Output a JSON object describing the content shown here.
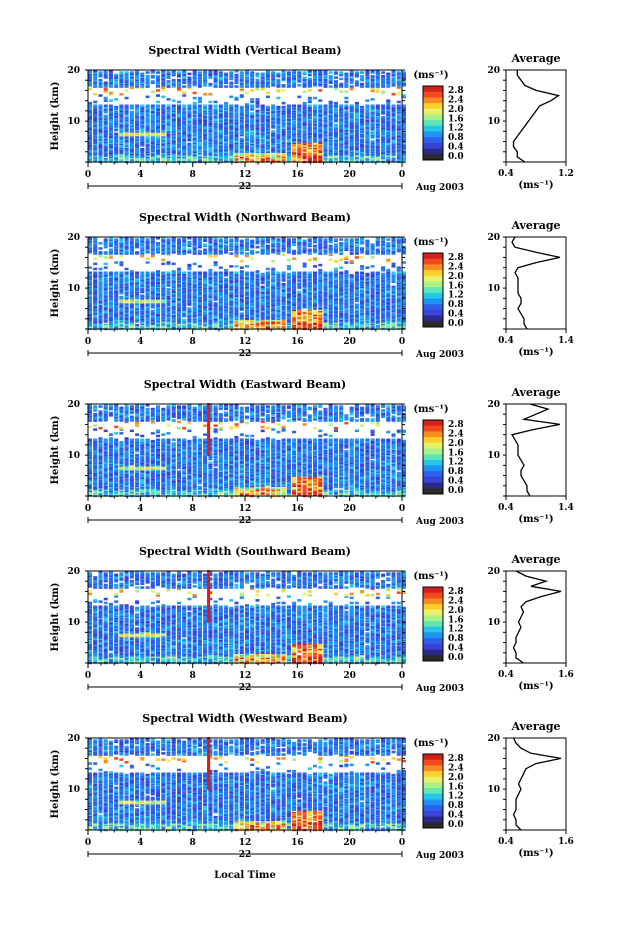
{
  "figure": {
    "xlabel_bottom": "Local Time",
    "date_label": "Aug 2003",
    "day_label": "22",
    "avg_title": "Average",
    "unit_label": "(ms⁻¹)",
    "y_label": "Height (km)"
  },
  "colorbar": {
    "unit": "(ms⁻¹)",
    "ticks": [
      "2.8",
      "2.4",
      "2.0",
      "1.6",
      "1.2",
      "0.8",
      "0.4",
      "0.0"
    ],
    "colors": [
      "#d4201c",
      "#f4491e",
      "#fa8a22",
      "#fdd02a",
      "#e7f26a",
      "#a8f088",
      "#5fe6b6",
      "#27c6e6",
      "#1f93f2",
      "#2e60ec",
      "#3a44d4",
      "#2a2a8a",
      "#2a2a2a"
    ]
  },
  "chart_data": [
    {
      "type": "heatmap",
      "title": "Spectral Width (Vertical Beam)",
      "xlabel": "Local Time",
      "ylabel": "Height (km)",
      "x_ticks": [
        "0",
        "4",
        "8",
        "12",
        "16",
        "20",
        "0"
      ],
      "xlim": [
        0,
        24
      ],
      "y_ticks": [
        "20",
        "10"
      ],
      "ylim": [
        2,
        20
      ],
      "value_range": [
        0,
        2.8
      ],
      "units": "ms-1",
      "avg_profile": {
        "xlabel": "(ms-1)",
        "x_ticks": [
          "0.4",
          "1.2"
        ],
        "xlim": [
          0.4,
          1.2
        ],
        "height_km": [
          2,
          3,
          4,
          5,
          6,
          7,
          8,
          9,
          10,
          11,
          12,
          13,
          14,
          15,
          16,
          17,
          18,
          19,
          20
        ],
        "width_ms": [
          0.65,
          0.55,
          0.55,
          0.5,
          0.5,
          0.55,
          0.6,
          0.65,
          0.7,
          0.75,
          0.8,
          0.85,
          1.0,
          1.1,
          0.8,
          0.65,
          0.6,
          0.55,
          0.55
        ]
      }
    },
    {
      "type": "heatmap",
      "title": "Spectral Width (Northward Beam)",
      "xlabel": "Local Time",
      "ylabel": "Height (km)",
      "x_ticks": [
        "0",
        "4",
        "8",
        "12",
        "16",
        "20",
        "0"
      ],
      "xlim": [
        0,
        24
      ],
      "y_ticks": [
        "20",
        "10"
      ],
      "ylim": [
        2,
        20
      ],
      "value_range": [
        0,
        2.8
      ],
      "units": "ms-1",
      "avg_profile": {
        "xlabel": "(ms-1)",
        "x_ticks": [
          "0.4",
          "1.4"
        ],
        "xlim": [
          0.4,
          1.4
        ],
        "height_km": [
          2,
          3,
          4,
          5,
          6,
          7,
          8,
          9,
          10,
          11,
          12,
          13,
          14,
          15,
          16,
          17,
          18,
          19,
          20
        ],
        "width_ms": [
          0.75,
          0.7,
          0.7,
          0.65,
          0.6,
          0.65,
          0.65,
          0.6,
          0.6,
          0.6,
          0.6,
          0.55,
          0.6,
          0.9,
          1.3,
          0.9,
          0.55,
          0.5,
          0.55
        ]
      }
    },
    {
      "type": "heatmap",
      "title": "Spectral Width (Eastward Beam)",
      "xlabel": "Local Time",
      "ylabel": "Height (km)",
      "x_ticks": [
        "0",
        "4",
        "8",
        "12",
        "16",
        "20",
        "0"
      ],
      "xlim": [
        0,
        24
      ],
      "y_ticks": [
        "20",
        "10"
      ],
      "ylim": [
        2,
        20
      ],
      "value_range": [
        0,
        2.8
      ],
      "units": "ms-1",
      "avg_profile": {
        "xlabel": "(ms-1)",
        "x_ticks": [
          "0.4",
          "1.4"
        ],
        "xlim": [
          0.4,
          1.4
        ],
        "height_km": [
          2,
          3,
          4,
          5,
          6,
          7,
          8,
          9,
          10,
          11,
          12,
          13,
          14,
          15,
          16,
          17,
          18,
          19,
          20
        ],
        "width_ms": [
          0.8,
          0.75,
          0.75,
          0.7,
          0.65,
          0.65,
          0.7,
          0.65,
          0.6,
          0.6,
          0.6,
          0.55,
          0.5,
          0.85,
          1.3,
          0.7,
          0.9,
          1.1,
          0.8
        ]
      }
    },
    {
      "type": "heatmap",
      "title": "Spectral Width (Southward Beam)",
      "xlabel": "Local Time",
      "ylabel": "Height (km)",
      "x_ticks": [
        "0",
        "4",
        "8",
        "12",
        "16",
        "20",
        "0"
      ],
      "xlim": [
        0,
        24
      ],
      "y_ticks": [
        "20",
        "10"
      ],
      "ylim": [
        2,
        20
      ],
      "value_range": [
        0,
        2.8
      ],
      "units": "ms-1",
      "avg_profile": {
        "xlabel": "(ms-1)",
        "x_ticks": [
          "0.4",
          "1.6"
        ],
        "xlim": [
          0.4,
          1.6
        ],
        "height_km": [
          2,
          3,
          4,
          5,
          6,
          7,
          8,
          9,
          10,
          11,
          12,
          13,
          14,
          15,
          16,
          17,
          18,
          19,
          20
        ],
        "width_ms": [
          0.75,
          0.6,
          0.6,
          0.55,
          0.6,
          0.6,
          0.65,
          0.7,
          0.65,
          0.7,
          0.75,
          0.7,
          0.8,
          1.1,
          1.5,
          0.9,
          1.2,
          0.8,
          0.6
        ]
      }
    },
    {
      "type": "heatmap",
      "title": "Spectral Width (Westward Beam)",
      "xlabel": "Local Time",
      "ylabel": "Height (km)",
      "x_ticks": [
        "0",
        "4",
        "8",
        "12",
        "16",
        "20",
        "0"
      ],
      "xlim": [
        0,
        24
      ],
      "y_ticks": [
        "20",
        "10"
      ],
      "ylim": [
        2,
        20
      ],
      "value_range": [
        0,
        2.8
      ],
      "units": "ms-1",
      "avg_profile": {
        "xlabel": "(ms-1)",
        "x_ticks": [
          "0.4",
          "1.6"
        ],
        "xlim": [
          0.4,
          1.6
        ],
        "height_km": [
          2,
          3,
          4,
          5,
          6,
          7,
          8,
          9,
          10,
          11,
          12,
          13,
          14,
          15,
          16,
          17,
          18,
          19,
          20
        ],
        "width_ms": [
          0.7,
          0.6,
          0.6,
          0.55,
          0.6,
          0.6,
          0.6,
          0.65,
          0.7,
          0.65,
          0.7,
          0.75,
          0.8,
          1.0,
          1.5,
          0.9,
          0.7,
          0.6,
          0.55
        ]
      }
    }
  ]
}
